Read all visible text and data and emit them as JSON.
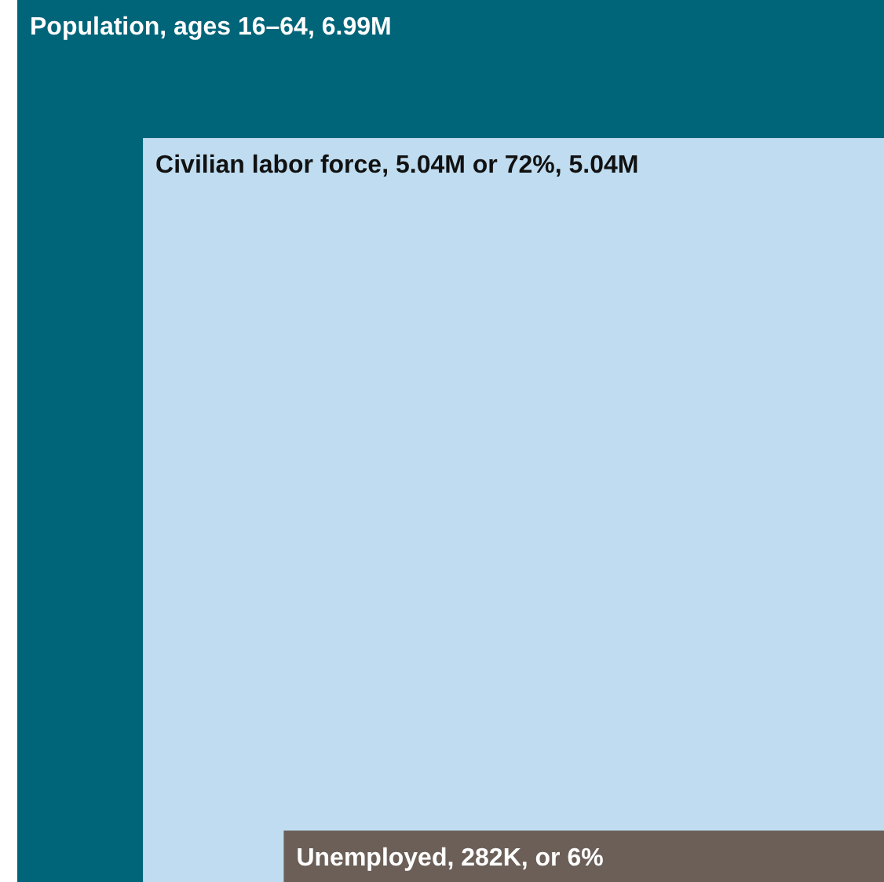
{
  "chart_data": {
    "type": "other",
    "values": [
      6990000,
      5040000,
      282000
    ],
    "value_labels": [
      "Population, ages 16–64, 6.99M",
      "Civilian labor force, 5.04M or 72%, 5.04M",
      "Unemployed, 282K, or 6%"
    ],
    "colors": [
      "#006579",
      "#bfdcf0",
      "#6b5f58"
    ]
  }
}
